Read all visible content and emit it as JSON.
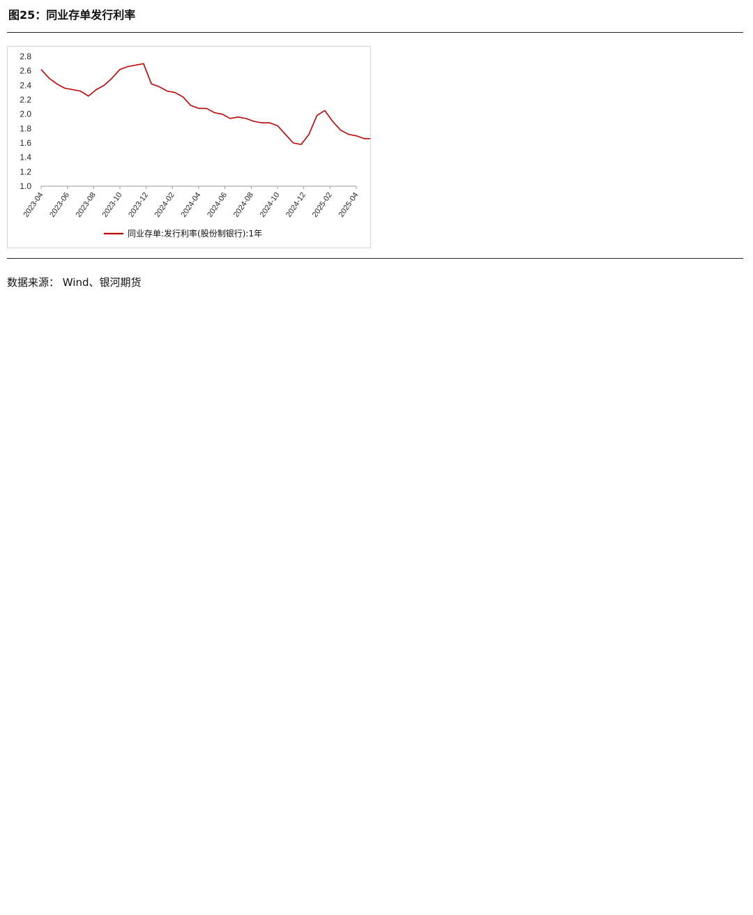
{
  "figure": {
    "title": "图25：同业存单发行利率"
  },
  "source_note": "数据来源： Wind、银河期货",
  "chart_data": {
    "type": "line",
    "title": "同业存单发行利率",
    "ylim": [
      1.0,
      2.8
    ],
    "y_ticks": [
      "1.0",
      "1.2",
      "1.4",
      "1.6",
      "1.8",
      "2.0",
      "2.2",
      "2.4",
      "2.6",
      "2.8"
    ],
    "x_ticks": [
      "2023-04",
      "2023-06",
      "2023-08",
      "2023-10",
      "2023-12",
      "2024-02",
      "2024-04",
      "2024-06",
      "2024-08",
      "2024-10",
      "2024-12",
      "2025-02",
      "2025-04"
    ],
    "series": [
      {
        "name": "同业存单:发行利率(股份制银行):1年",
        "color": "#c00000",
        "x": [
          0,
          0.3,
          0.6,
          0.9,
          1.2,
          1.5,
          1.8,
          2.1,
          2.4,
          2.7,
          3.0,
          3.3,
          3.6,
          3.9,
          4.2,
          4.5,
          4.8,
          5.1,
          5.4,
          5.7,
          6.0,
          6.3,
          6.6,
          6.9,
          7.2,
          7.5,
          7.8,
          8.1,
          8.4,
          8.7,
          9.0,
          9.3,
          9.6,
          9.9,
          10.2,
          10.5,
          10.8,
          11.1,
          11.4,
          11.7,
          12.0,
          12.3,
          12.6
        ],
        "values": [
          2.62,
          2.5,
          2.42,
          2.36,
          2.34,
          2.32,
          2.25,
          2.34,
          2.4,
          2.5,
          2.62,
          2.66,
          2.68,
          2.7,
          2.42,
          2.38,
          2.32,
          2.3,
          2.24,
          2.12,
          2.08,
          2.08,
          2.02,
          2.0,
          1.94,
          1.96,
          1.94,
          1.9,
          1.88,
          1.88,
          1.84,
          1.72,
          1.6,
          1.58,
          1.72,
          1.98,
          2.05,
          1.9,
          1.78,
          1.72,
          1.7,
          1.66,
          1.66
        ]
      }
    ]
  }
}
